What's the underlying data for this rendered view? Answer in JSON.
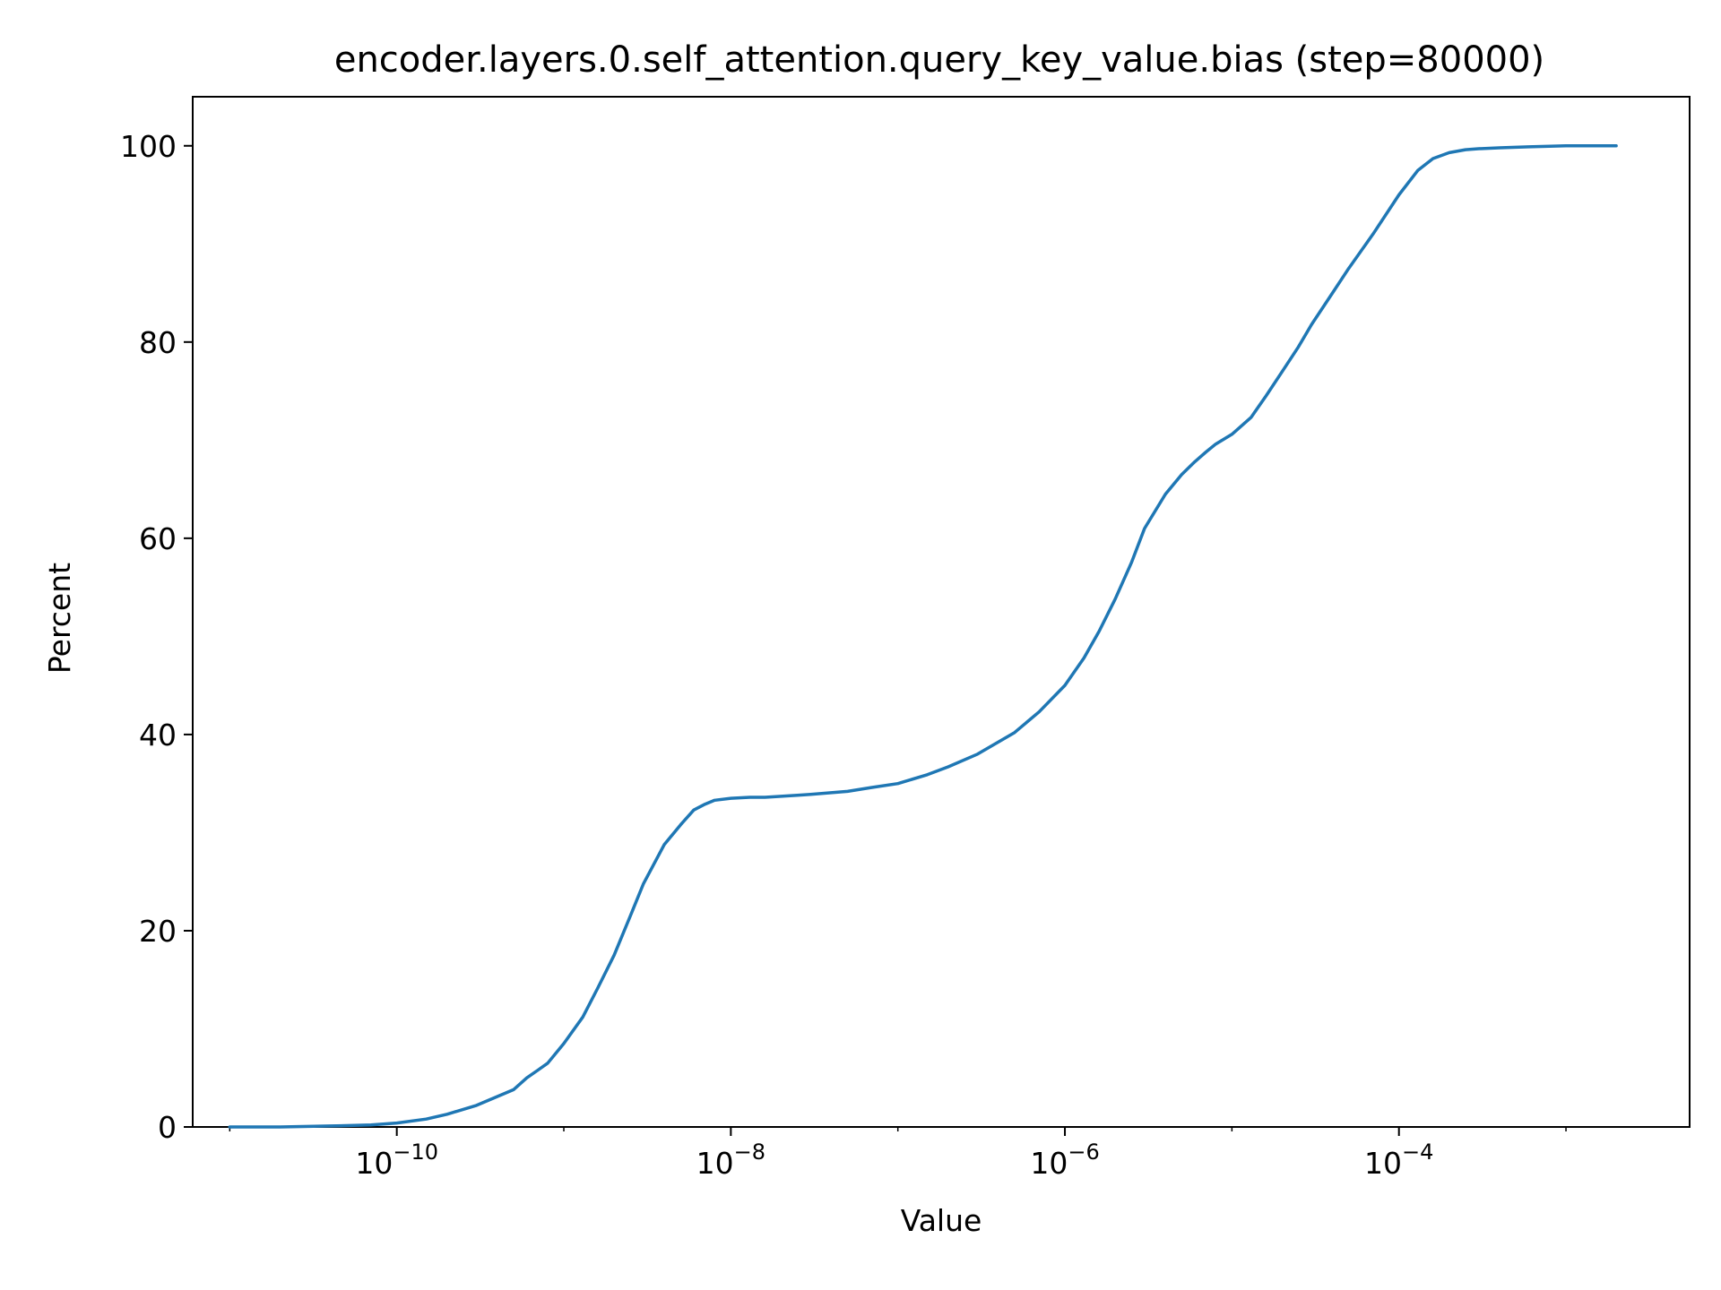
{
  "chart_data": {
    "type": "line",
    "title": "encoder.layers.0.self_attention.query_key_value.bias (step=80000)",
    "xlabel": "Value",
    "ylabel": "Percent",
    "xscale": "log",
    "xlim": [
      6e-12,
      0.0055
    ],
    "ylim": [
      0,
      105
    ],
    "grid": false,
    "line_color": "#1f77b4",
    "x_ticks": [
      {
        "value": 1e-10,
        "base": "10",
        "exponent": "−10"
      },
      {
        "value": 1e-08,
        "base": "10",
        "exponent": "−8"
      },
      {
        "value": 1e-06,
        "base": "10",
        "exponent": "−6"
      },
      {
        "value": 0.0001,
        "base": "10",
        "exponent": "−4"
      }
    ],
    "y_ticks": [
      {
        "value": 0,
        "label": "0"
      },
      {
        "value": 20,
        "label": "20"
      },
      {
        "value": 40,
        "label": "40"
      },
      {
        "value": 60,
        "label": "60"
      },
      {
        "value": 80,
        "label": "80"
      },
      {
        "value": 100,
        "label": "100"
      }
    ],
    "series": [
      {
        "x": [
          1e-11,
          2e-11,
          4e-11,
          7e-11,
          1e-10,
          1.5e-10,
          2e-10,
          3e-10,
          4e-10,
          5e-10,
          6e-10,
          7e-10,
          8e-10,
          1e-09,
          1.3e-09,
          1.6e-09,
          2e-09,
          2.5e-09,
          3e-09,
          4e-09,
          5e-09,
          6e-09,
          7e-09,
          8e-09,
          1e-08,
          1.3e-08,
          1.6e-08,
          2e-08,
          2.5e-08,
          3e-08,
          5e-08,
          7e-08,
          1e-07,
          1.5e-07,
          2e-07,
          3e-07,
          5e-07,
          7e-07,
          1e-06,
          1.3e-06,
          1.6e-06,
          2e-06,
          2.5e-06,
          3e-06,
          4e-06,
          5e-06,
          6e-06,
          7e-06,
          8e-06,
          1e-05,
          1.3e-05,
          1.6e-05,
          2e-05,
          2.5e-05,
          3e-05,
          4e-05,
          5e-05,
          7e-05,
          0.0001,
          0.00013,
          0.00016,
          0.0002,
          0.00025,
          0.0003,
          0.0004,
          0.0005,
          0.0006,
          0.0008,
          0.001,
          0.0015,
          0.002
        ],
        "y": [
          0,
          0,
          0.1,
          0.2,
          0.4,
          0.8,
          1.3,
          2.2,
          3.1,
          3.8,
          5.0,
          5.8,
          6.5,
          8.5,
          11.2,
          14.2,
          17.5,
          21.5,
          24.8,
          28.8,
          30.8,
          32.3,
          32.9,
          33.3,
          33.5,
          33.6,
          33.6,
          33.7,
          33.8,
          33.9,
          34.2,
          34.6,
          35.0,
          35.9,
          36.7,
          38.0,
          40.2,
          42.3,
          45.0,
          47.8,
          50.5,
          53.8,
          57.5,
          61.0,
          64.5,
          66.5,
          67.8,
          68.8,
          69.6,
          70.6,
          72.3,
          74.5,
          77.0,
          79.5,
          81.8,
          85.0,
          87.5,
          91.0,
          95.0,
          97.5,
          98.7,
          99.3,
          99.6,
          99.7,
          99.8,
          99.85,
          99.9,
          99.95,
          100,
          100,
          100
        ]
      }
    ]
  }
}
